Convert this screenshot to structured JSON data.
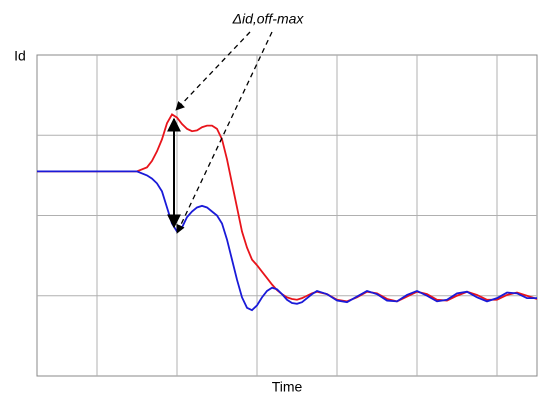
{
  "chart_data": {
    "type": "line",
    "y_label": "Id",
    "x_label": "Time",
    "annotation": "Δid,off-max",
    "x": [
      0,
      60,
      100,
      110,
      115,
      120,
      125,
      130,
      135,
      140,
      145,
      150,
      155,
      160,
      165,
      170,
      175,
      180,
      185,
      190,
      195,
      200,
      205,
      210,
      215,
      220,
      225,
      230,
      235,
      240,
      245,
      250,
      255,
      260,
      265,
      270,
      275,
      280,
      290,
      300,
      310,
      320,
      330,
      340,
      350,
      360,
      370,
      380,
      390,
      400,
      410,
      420,
      430,
      440,
      450,
      460,
      470,
      480,
      490,
      500
    ],
    "series": [
      {
        "color": "#e8141b",
        "values": [
          2.55,
          2.55,
          2.55,
          2.6,
          2.68,
          2.8,
          2.95,
          3.15,
          3.26,
          3.22,
          3.14,
          3.08,
          3.05,
          3.06,
          3.1,
          3.12,
          3.12,
          3.08,
          2.95,
          2.7,
          2.4,
          2.1,
          1.8,
          1.6,
          1.45,
          1.38,
          1.3,
          1.22,
          1.14,
          1.07,
          1.02,
          0.98,
          0.96,
          0.95,
          0.97,
          1.0,
          1.03,
          1.05,
          1.02,
          0.95,
          0.93,
          0.98,
          1.05,
          1.03,
          0.96,
          0.93,
          0.99,
          1.05,
          1.02,
          0.95,
          0.94,
          1.0,
          1.05,
          1.01,
          0.95,
          0.95,
          1.01,
          1.04,
          1.0,
          0.96
        ]
      },
      {
        "color": "#1a1ad8",
        "values": [
          2.55,
          2.55,
          2.55,
          2.5,
          2.46,
          2.4,
          2.3,
          2.1,
          1.9,
          1.8,
          1.85,
          1.98,
          2.05,
          2.1,
          2.12,
          2.1,
          2.05,
          2.0,
          1.9,
          1.7,
          1.45,
          1.2,
          0.98,
          0.85,
          0.82,
          0.88,
          0.98,
          1.06,
          1.1,
          1.08,
          1.02,
          0.95,
          0.91,
          0.9,
          0.92,
          0.97,
          1.02,
          1.06,
          1.02,
          0.94,
          0.92,
          0.99,
          1.06,
          1.02,
          0.94,
          0.93,
          1.01,
          1.06,
          1.0,
          0.93,
          0.95,
          1.03,
          1.05,
          0.98,
          0.93,
          0.97,
          1.04,
          1.03,
          0.97,
          0.97
        ]
      }
    ],
    "xlim": [
      0,
      500
    ],
    "ylim": [
      0,
      4
    ],
    "xgrid": [
      60,
      140,
      220,
      300,
      380,
      460
    ],
    "ygrid": [
      1,
      2,
      3
    ]
  }
}
